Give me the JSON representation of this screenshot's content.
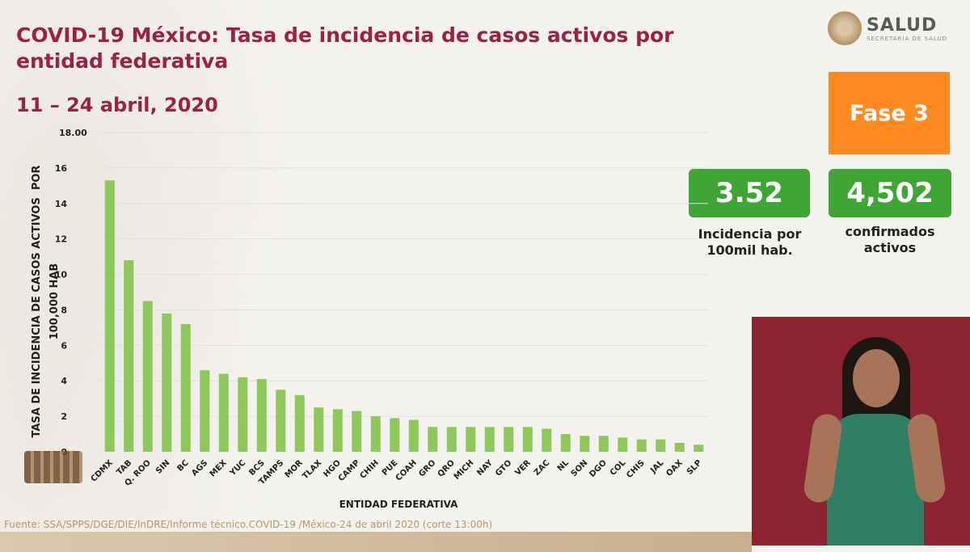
{
  "header": {
    "title": "COVID-19 México: Tasa de incidencia de casos activos por entidad federativa",
    "date_range": "11 – 24 abril, 2020"
  },
  "logo": {
    "name": "SALUD",
    "subtitle": "SECRETARÍA DE SALUD"
  },
  "phase": {
    "label": "Fase 3"
  },
  "kpis": [
    {
      "value": "3.52",
      "label": "Incidencia por 100mil hab."
    },
    {
      "value": "4,502",
      "label": "confirmados activos"
    }
  ],
  "footer": {
    "source": "Fuente: SSA/SPPS/DGE/DIE/InDRE/Informe técnico.COVID-19 /México-24 de abril 2020 (corte 13:00h)"
  },
  "colors": {
    "title": "#9b2247",
    "bar": "#8fc85a",
    "phase": "#ff8a1f",
    "kpi": "#3fa535"
  },
  "chart_data": {
    "type": "bar",
    "title": "",
    "xlabel": "ENTIDAD FEDERATIVA",
    "ylabel": "TASA DE INCIDENCIA DE CASOS ACTIVOS  POR\n100,000 HAB",
    "ylim": [
      0,
      18
    ],
    "yticks": [
      0,
      2,
      4,
      6,
      8,
      10,
      12,
      14,
      16,
      18
    ],
    "ytick_labels": [
      "0",
      "2",
      "4",
      "6",
      "8",
      "10",
      "12",
      "14",
      "16",
      "18.00"
    ],
    "grid": true,
    "categories": [
      "CDMX",
      "TAB",
      "Q. ROO",
      "SIN",
      "BC",
      "AGS",
      "MEX",
      "YUC",
      "BCS",
      "TAMPS",
      "MOR",
      "TLAX",
      "HGO",
      "CAMP",
      "CHIH",
      "PUE",
      "COAH",
      "GRO",
      "QRO",
      "MICH",
      "NAY",
      "GTO",
      "VER",
      "ZAC",
      "NL",
      "SON",
      "DGO",
      "COL",
      "CHIS",
      "JAL",
      "OAX",
      "SLP"
    ],
    "values": [
      15.3,
      10.8,
      8.5,
      7.8,
      7.2,
      4.6,
      4.4,
      4.2,
      4.1,
      3.5,
      3.2,
      2.5,
      2.4,
      2.3,
      2.0,
      1.9,
      1.8,
      1.4,
      1.4,
      1.4,
      1.4,
      1.4,
      1.4,
      1.3,
      1.0,
      0.9,
      0.9,
      0.8,
      0.7,
      0.7,
      0.5,
      0.4
    ]
  }
}
